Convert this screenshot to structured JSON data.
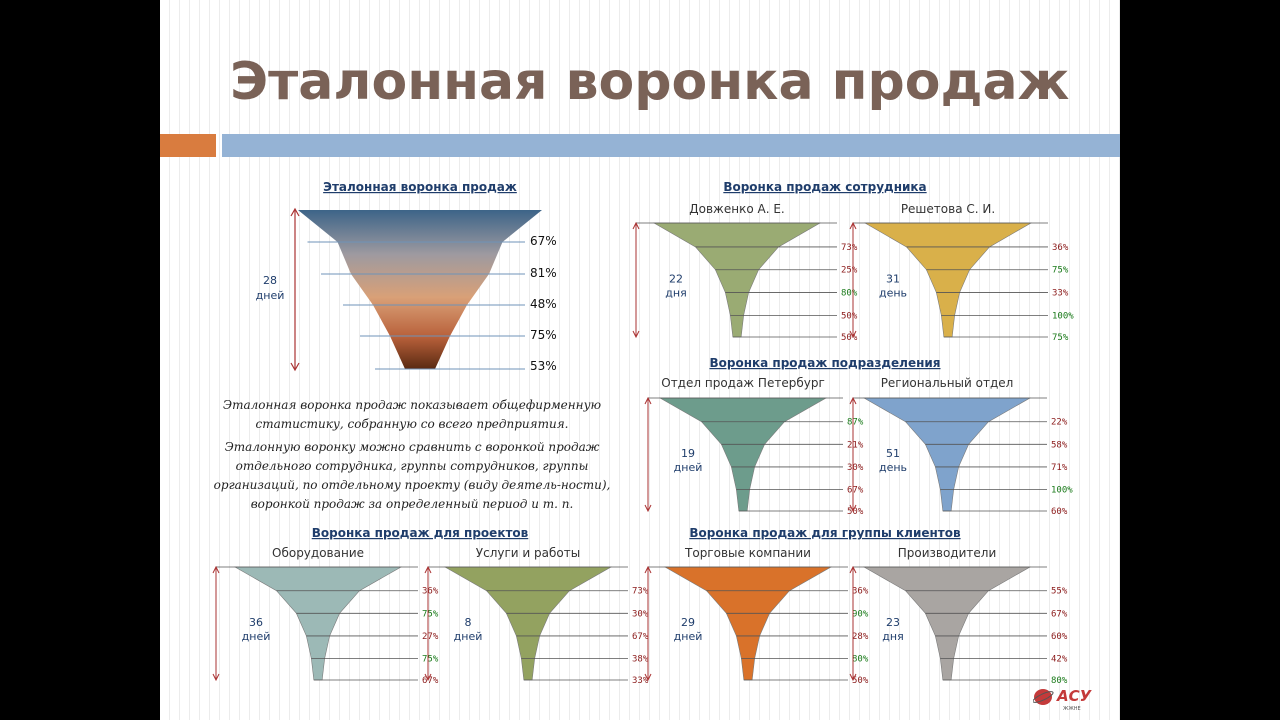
{
  "title": "Эталонная воронка продаж",
  "main": {
    "header": "Эталонная воронка продаж",
    "days": "28",
    "days_word": "дней",
    "percents": [
      "67%",
      "81%",
      "48%",
      "75%",
      "53%"
    ]
  },
  "description": {
    "p1": "Эталонная воронка продаж показывает общефирменную статистику, собранную со всего предприятия.",
    "p2": "Эталонную воронку можно сравнить с воронкой продаж отдельного сотрудника, группы сотрудников, группы организаций, по отдельному проекту (виду деятель-ности), воронкой продаж за определенный период и т. п."
  },
  "groups": {
    "employee": "Воронка продаж сотрудника",
    "division": "Воронка продаж подразделения",
    "projects": "Воронка продаж для проектов",
    "clients": "Воронка продаж для группы клиентов"
  },
  "funnels": [
    {
      "label": "Довженко А. Е.",
      "days": "22",
      "days_word": "дня",
      "color": "#9aab73",
      "percents": [
        "73%",
        "25%",
        "80%",
        "50%",
        "50%"
      ],
      "tones": [
        "r",
        "r",
        "g",
        "r",
        "r"
      ]
    },
    {
      "label": "Решетова С. И.",
      "days": "31",
      "days_word": "день",
      "color": "#d9b04a",
      "percents": [
        "36%",
        "75%",
        "33%",
        "100%",
        "75%"
      ],
      "tones": [
        "r",
        "g",
        "r",
        "g",
        "g"
      ]
    },
    {
      "label": "Отдел продаж Петербург",
      "days": "19",
      "days_word": "дней",
      "color": "#6d9c8c",
      "percents": [
        "87%",
        "21%",
        "30%",
        "67%",
        "50%"
      ],
      "tones": [
        "g",
        "r",
        "r",
        "r",
        "r"
      ]
    },
    {
      "label": "Региональный отдел",
      "days": "51",
      "days_word": "день",
      "color": "#7fa3cc",
      "percents": [
        "22%",
        "58%",
        "71%",
        "100%",
        "60%"
      ],
      "tones": [
        "r",
        "r",
        "r",
        "g",
        "r"
      ]
    },
    {
      "label": "Оборудование",
      "days": "36",
      "days_word": "дней",
      "color": "#9cb9b6",
      "percents": [
        "36%",
        "75%",
        "27%",
        "75%",
        "67%"
      ],
      "tones": [
        "r",
        "g",
        "r",
        "g",
        "r"
      ]
    },
    {
      "label": "Услуги и работы",
      "days": "8",
      "days_word": "дней",
      "color": "#93a260",
      "percents": [
        "73%",
        "30%",
        "67%",
        "38%",
        "33%"
      ],
      "tones": [
        "r",
        "r",
        "r",
        "r",
        "r"
      ]
    },
    {
      "label": "Торговые компании",
      "days": "29",
      "days_word": "дней",
      "color": "#d9722a",
      "percents": [
        "36%",
        "90%",
        "28%",
        "80%",
        "50%"
      ],
      "tones": [
        "r",
        "g",
        "r",
        "g",
        "r"
      ]
    },
    {
      "label": "Производители",
      "days": "23",
      "days_word": "дня",
      "color": "#a9a5a2",
      "percents": [
        "55%",
        "67%",
        "60%",
        "42%",
        "80%"
      ],
      "tones": [
        "r",
        "r",
        "r",
        "r",
        "g"
      ]
    }
  ],
  "logo": {
    "text": "АСУ",
    "tagline": "ЖЖНЕ"
  }
}
